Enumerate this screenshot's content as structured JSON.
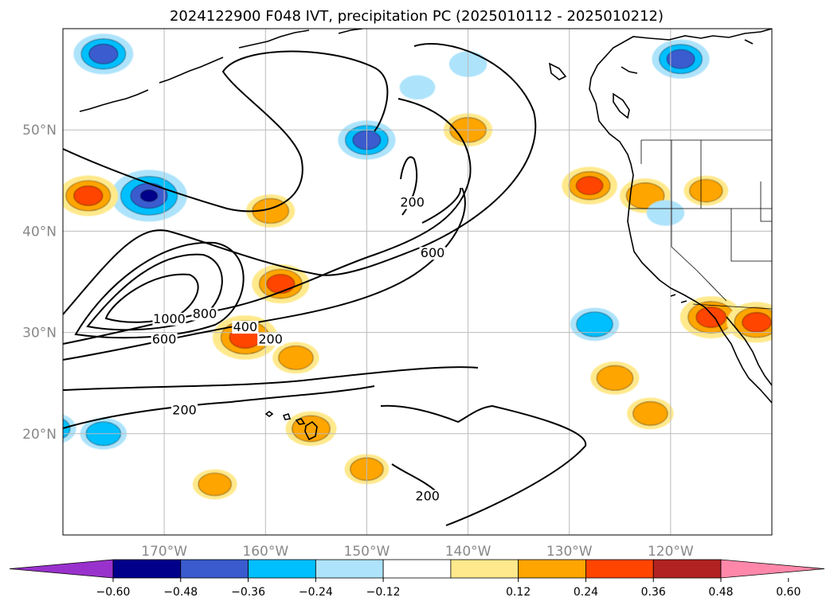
{
  "chart_data": {
    "type": "contour map",
    "title": "2024122900 F048 IVT, precipitation PC (2025010112 - 2025010212)",
    "map_extent": {
      "lon": [
        -180,
        -110
      ],
      "lat": [
        10,
        60
      ]
    },
    "longitude_ticks": [
      {
        "value": -170,
        "label": "170°W"
      },
      {
        "value": -160,
        "label": "160°W"
      },
      {
        "value": -150,
        "label": "150°W"
      },
      {
        "value": -140,
        "label": "140°W"
      },
      {
        "value": -130,
        "label": "130°W"
      },
      {
        "value": -120,
        "label": "120°W"
      }
    ],
    "latitude_ticks": [
      {
        "value": 20,
        "label": "20°N"
      },
      {
        "value": 30,
        "label": "30°N"
      },
      {
        "value": 40,
        "label": "40°N"
      },
      {
        "value": 50,
        "label": "50°N"
      }
    ],
    "grid": true,
    "colorbar": {
      "ticks": [
        "−0.60",
        "−0.48",
        "−0.36",
        "−0.24",
        "−0.12",
        "0.12",
        "0.24",
        "0.36",
        "0.48",
        "0.60"
      ],
      "bins": [
        {
          "range": "< -0.60",
          "color": "#9932CC"
        },
        {
          "range": "-0.60 to -0.48",
          "color": "#00008B"
        },
        {
          "range": "-0.48 to -0.36",
          "color": "#3A5BCE"
        },
        {
          "range": "-0.36 to -0.24",
          "color": "#00BFFF"
        },
        {
          "range": "-0.24 to -0.12",
          "color": "#ADE3FB"
        },
        {
          "range": "-0.12 to 0.12",
          "color": "#FFFFFF"
        },
        {
          "range": "0.12 to 0.24",
          "color": "#FFE98C"
        },
        {
          "range": "0.24 to 0.36",
          "color": "#FFA500"
        },
        {
          "range": "0.36 to 0.48",
          "color": "#FF4500"
        },
        {
          "range": "0.48 to 0.60",
          "color": "#B22222"
        },
        {
          "range": "> 0.60",
          "color": "#FF88AA"
        }
      ]
    },
    "ivt_contour_labels": [
      {
        "text": "1000",
        "lon": -169.5,
        "lat": 31.0
      },
      {
        "text": "800",
        "lon": -166.0,
        "lat": 31.5
      },
      {
        "text": "600",
        "lon": -170.0,
        "lat": 29.0
      },
      {
        "text": "400",
        "lon": -162.0,
        "lat": 30.2
      },
      {
        "text": "200",
        "lon": -159.5,
        "lat": 29.0
      },
      {
        "text": "200",
        "lon": -168.0,
        "lat": 22.0
      },
      {
        "text": "200",
        "lon": -145.5,
        "lat": 42.5
      },
      {
        "text": "600",
        "lon": -143.5,
        "lat": 37.5
      },
      {
        "text": "200",
        "lon": -144.0,
        "lat": 13.5
      }
    ],
    "precip_pc_blobs": [
      {
        "lon": -176.0,
        "lat": 57.5,
        "value": -0.4
      },
      {
        "lon": -171.5,
        "lat": 43.5,
        "value": -0.55
      },
      {
        "lon": -177.5,
        "lat": 43.5,
        "value": 0.4
      },
      {
        "lon": -158.5,
        "lat": 34.8,
        "value": 0.38
      },
      {
        "lon": -159.5,
        "lat": 42.0,
        "value": 0.3
      },
      {
        "lon": -162.0,
        "lat": 29.5,
        "value": 0.45
      },
      {
        "lon": -157.0,
        "lat": 27.5,
        "value": 0.28
      },
      {
        "lon": -150.0,
        "lat": 49.0,
        "value": -0.38
      },
      {
        "lon": -140.0,
        "lat": 50.0,
        "value": 0.3
      },
      {
        "lon": -140.0,
        "lat": 56.5,
        "value": -0.2
      },
      {
        "lon": -145.0,
        "lat": 54.2,
        "value": -0.18
      },
      {
        "lon": -128.0,
        "lat": 44.5,
        "value": 0.36
      },
      {
        "lon": -122.5,
        "lat": 43.5,
        "value": 0.32
      },
      {
        "lon": -116.5,
        "lat": 44.0,
        "value": 0.26
      },
      {
        "lon": -119.0,
        "lat": 57.0,
        "value": -0.38
      },
      {
        "lon": -120.5,
        "lat": 41.8,
        "value": -0.2
      },
      {
        "lon": -127.5,
        "lat": 30.8,
        "value": -0.3
      },
      {
        "lon": -116.0,
        "lat": 31.5,
        "value": 0.42
      },
      {
        "lon": -111.5,
        "lat": 31.0,
        "value": 0.4
      },
      {
        "lon": -122.0,
        "lat": 22.0,
        "value": 0.28
      },
      {
        "lon": -125.5,
        "lat": 25.5,
        "value": 0.3
      },
      {
        "lon": -176.0,
        "lat": 20.0,
        "value": -0.28
      },
      {
        "lon": -181.0,
        "lat": 20.5,
        "value": -0.28
      },
      {
        "lon": -148.0,
        "lat": 34.0,
        "value": 0.0
      },
      {
        "lon": -155.5,
        "lat": 20.5,
        "value": 0.32
      },
      {
        "lon": -150.0,
        "lat": 16.5,
        "value": 0.26
      },
      {
        "lon": -165.0,
        "lat": 15.0,
        "value": 0.26
      }
    ]
  }
}
